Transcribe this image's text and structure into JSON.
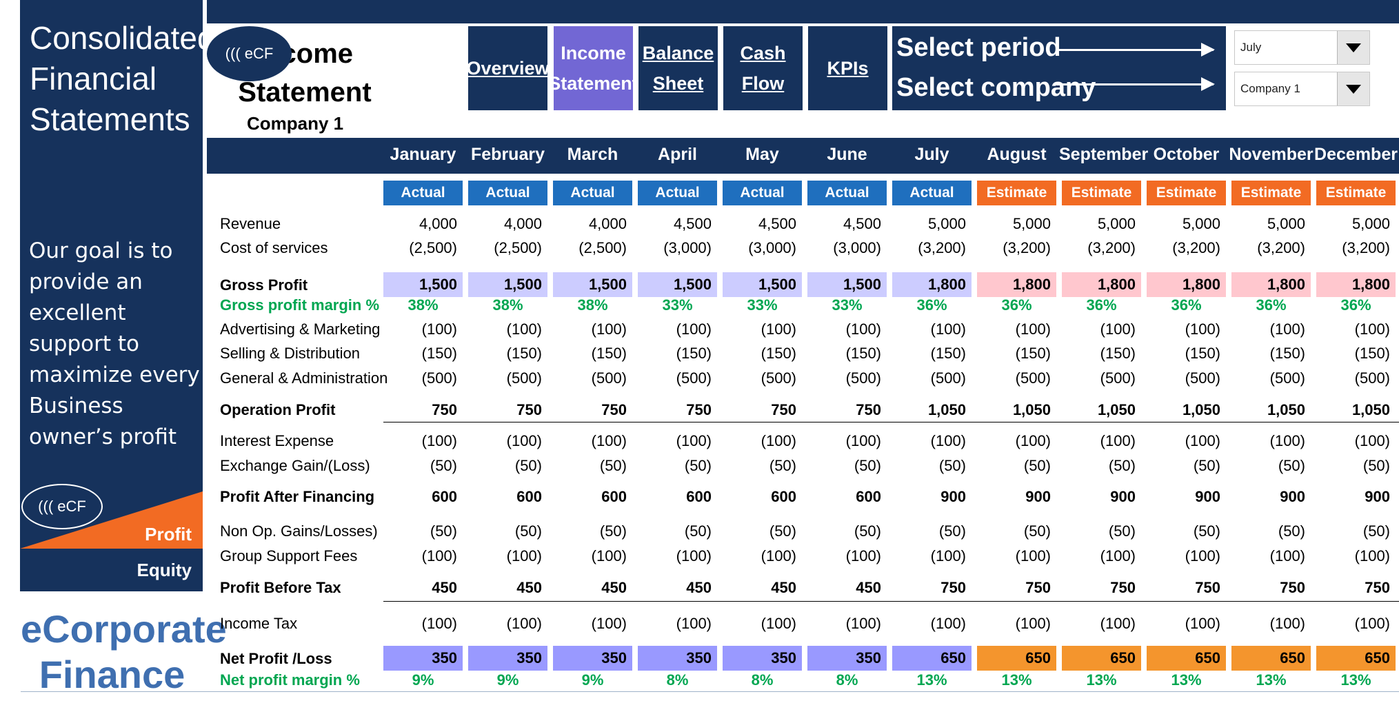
{
  "sidebar": {
    "title": "Consolidated Financial Statements",
    "goal": "Our goal is to provide an excellent support to maximize every Business owner’s profit",
    "logo": "((( eCF",
    "profit_label": "Profit",
    "equity_label": "Equity",
    "brand": "eCorporate Finance"
  },
  "header": {
    "logo": "((( eCF",
    "title": "Income Statement",
    "company": "Company 1"
  },
  "nav": {
    "overview": "Overview",
    "income_statement": "Income Statement",
    "balance_sheet": "Balance Sheet",
    "cash_flow": "Cash Flow",
    "kpis": "KPIs"
  },
  "selectors": {
    "period_label": "Select period",
    "company_label": "Select company",
    "period_value": "July",
    "company_value": "Company 1"
  },
  "colors": {
    "navy": "#16325c",
    "actual": "#1f6fbe",
    "estimate": "#f26b23",
    "gp_actual": "#ccccff",
    "gp_estimate": "#ffc7ce",
    "np_actual": "#9999ff",
    "np_estimate": "#f4952d",
    "green": "#00a651"
  },
  "table": {
    "months": [
      "January",
      "February",
      "March",
      "April",
      "May",
      "June",
      "July",
      "August",
      "September",
      "October",
      "November",
      "December"
    ],
    "status": [
      "Actual",
      "Actual",
      "Actual",
      "Actual",
      "Actual",
      "Actual",
      "Actual",
      "Estimate",
      "Estimate",
      "Estimate",
      "Estimate",
      "Estimate"
    ],
    "rows": [
      {
        "label": "Revenue",
        "style": "normal",
        "values": [
          "4,000",
          "4,000",
          "4,000",
          "4,500",
          "4,500",
          "4,500",
          "5,000",
          "5,000",
          "5,000",
          "5,000",
          "5,000",
          "5,000"
        ]
      },
      {
        "label": "Cost of services",
        "style": "normal",
        "values": [
          "(2,500)",
          "(2,500)",
          "(2,500)",
          "(3,000)",
          "(3,000)",
          "(3,000)",
          "(3,200)",
          "(3,200)",
          "(3,200)",
          "(3,200)",
          "(3,200)",
          "(3,200)"
        ]
      },
      {
        "label": "Gross Profit",
        "style": "gross",
        "values": [
          "1,500",
          "1,500",
          "1,500",
          "1,500",
          "1,500",
          "1,500",
          "1,800",
          "1,800",
          "1,800",
          "1,800",
          "1,800",
          "1,800"
        ]
      },
      {
        "label": "Gross profit margin %",
        "style": "green",
        "values": [
          "38%",
          "38%",
          "38%",
          "33%",
          "33%",
          "33%",
          "36%",
          "36%",
          "36%",
          "36%",
          "36%",
          "36%"
        ]
      },
      {
        "label": "Advertising & Marketing",
        "style": "normal",
        "values": [
          "(100)",
          "(100)",
          "(100)",
          "(100)",
          "(100)",
          "(100)",
          "(100)",
          "(100)",
          "(100)",
          "(100)",
          "(100)",
          "(100)"
        ]
      },
      {
        "label": "Selling & Distribution",
        "style": "normal",
        "values": [
          "(150)",
          "(150)",
          "(150)",
          "(150)",
          "(150)",
          "(150)",
          "(150)",
          "(150)",
          "(150)",
          "(150)",
          "(150)",
          "(150)"
        ]
      },
      {
        "label": "General & Administration",
        "style": "normal",
        "values": [
          "(500)",
          "(500)",
          "(500)",
          "(500)",
          "(500)",
          "(500)",
          "(500)",
          "(500)",
          "(500)",
          "(500)",
          "(500)",
          "(500)"
        ]
      },
      {
        "label": "Operation Profit",
        "style": "bold",
        "values": [
          "750",
          "750",
          "750",
          "750",
          "750",
          "750",
          "1,050",
          "1,050",
          "1,050",
          "1,050",
          "1,050",
          "1,050"
        ]
      },
      {
        "label": "Interest Expense",
        "style": "normal",
        "values": [
          "(100)",
          "(100)",
          "(100)",
          "(100)",
          "(100)",
          "(100)",
          "(100)",
          "(100)",
          "(100)",
          "(100)",
          "(100)",
          "(100)"
        ]
      },
      {
        "label": "Exchange Gain/(Loss)",
        "style": "normal",
        "values": [
          "(50)",
          "(50)",
          "(50)",
          "(50)",
          "(50)",
          "(50)",
          "(50)",
          "(50)",
          "(50)",
          "(50)",
          "(50)",
          "(50)"
        ]
      },
      {
        "label": "Profit After Financing",
        "style": "bold",
        "values": [
          "600",
          "600",
          "600",
          "600",
          "600",
          "600",
          "900",
          "900",
          "900",
          "900",
          "900",
          "900"
        ]
      },
      {
        "label": "Non Op. Gains/Losses)",
        "style": "normal",
        "values": [
          "(50)",
          "(50)",
          "(50)",
          "(50)",
          "(50)",
          "(50)",
          "(50)",
          "(50)",
          "(50)",
          "(50)",
          "(50)",
          "(50)"
        ]
      },
      {
        "label": "Group Support Fees",
        "style": "normal",
        "values": [
          "(100)",
          "(100)",
          "(100)",
          "(100)",
          "(100)",
          "(100)",
          "(100)",
          "(100)",
          "(100)",
          "(100)",
          "(100)",
          "(100)"
        ]
      },
      {
        "label": "Profit Before Tax",
        "style": "bold",
        "values": [
          "450",
          "450",
          "450",
          "450",
          "450",
          "450",
          "750",
          "750",
          "750",
          "750",
          "750",
          "750"
        ]
      },
      {
        "label": "Income Tax",
        "style": "normal",
        "values": [
          "(100)",
          "(100)",
          "(100)",
          "(100)",
          "(100)",
          "(100)",
          "(100)",
          "(100)",
          "(100)",
          "(100)",
          "(100)",
          "(100)"
        ]
      },
      {
        "label": "Net Profit /Loss",
        "style": "net",
        "values": [
          "350",
          "350",
          "350",
          "350",
          "350",
          "350",
          "650",
          "650",
          "650",
          "650",
          "650",
          "650"
        ]
      },
      {
        "label": "Net profit margin %",
        "style": "green",
        "values": [
          "9%",
          "9%",
          "9%",
          "8%",
          "8%",
          "8%",
          "13%",
          "13%",
          "13%",
          "13%",
          "13%",
          "13%"
        ]
      }
    ]
  }
}
